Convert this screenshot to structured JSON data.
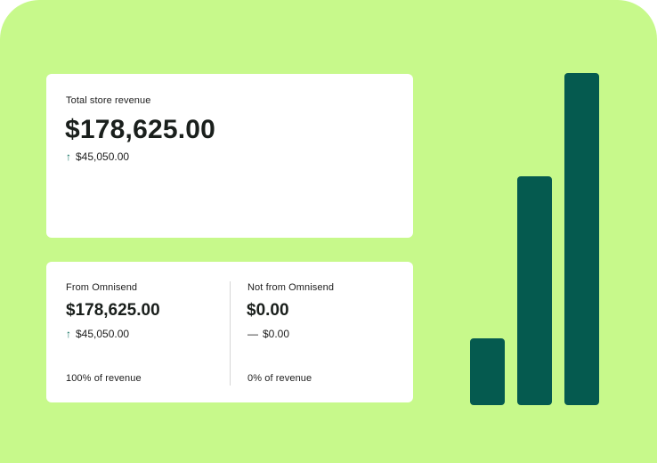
{
  "total_card": {
    "label": "Total store revenue",
    "value": "$178,625.00",
    "delta": "$45,050.00",
    "delta_icon": "arrow-up-icon"
  },
  "split_card": {
    "from": {
      "label": "From Omnisend",
      "value": "$178,625.00",
      "delta": "$45,050.00",
      "delta_icon": "arrow-up-icon",
      "share": "100% of revenue"
    },
    "not_from": {
      "label": "Not from Omnisend",
      "value": "$0.00",
      "delta": "$0.00",
      "delta_icon": "dash-icon",
      "share": "0% of revenue"
    }
  },
  "colors": {
    "background": "#c7f98b",
    "bar": "#055a4f",
    "arrow": "#0b6e5e"
  },
  "decor_bars": [
    0.2,
    0.69,
    1.0
  ]
}
